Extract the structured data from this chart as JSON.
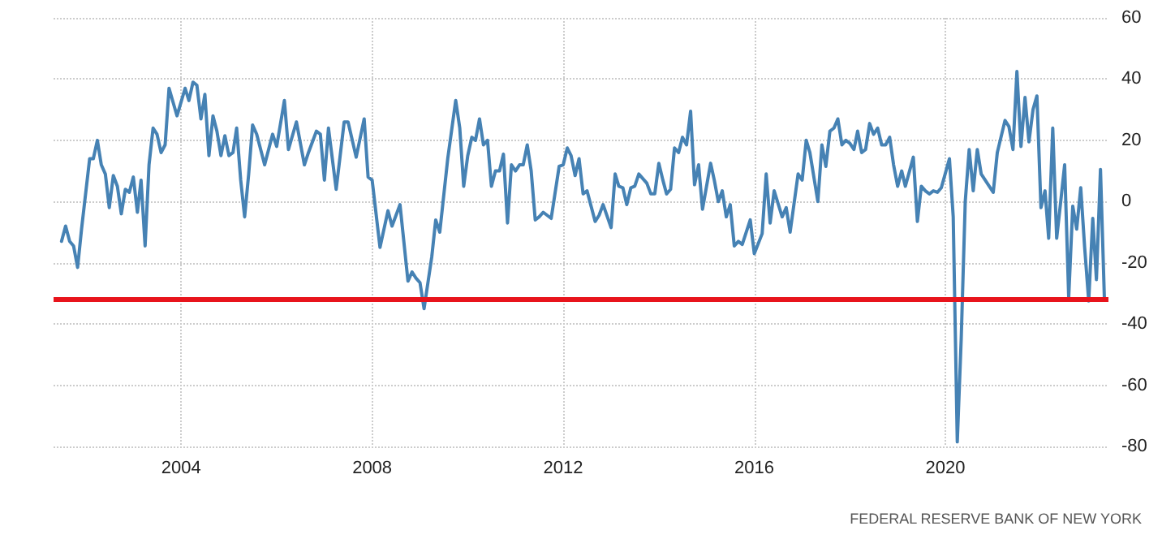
{
  "chart_data": {
    "type": "line",
    "annotations": [
      "FEDERAL RESERVE BANK OF NEW YORK"
    ],
    "x": [
      "2001-07",
      "2001-08",
      "2001-09",
      "2001-10",
      "2001-11",
      "2001-12",
      "2002-02",
      "2002-03",
      "2002-04",
      "2002-05",
      "2002-06",
      "2002-07",
      "2002-08",
      "2002-09",
      "2002-10",
      "2002-11",
      "2002-12",
      "2003-01",
      "2003-02",
      "2003-03",
      "2003-04",
      "2003-05",
      "2003-06",
      "2003-07",
      "2003-08",
      "2003-09",
      "2003-10",
      "2003-12",
      "2004-02",
      "2004-03",
      "2004-04",
      "2004-05",
      "2004-06",
      "2004-07",
      "2004-08",
      "2004-09",
      "2004-10",
      "2004-11",
      "2004-12",
      "2005-01",
      "2005-02",
      "2005-03",
      "2005-04",
      "2005-05",
      "2005-06",
      "2005-07",
      "2005-08",
      "2005-10",
      "2005-12",
      "2006-01",
      "2006-03",
      "2006-04",
      "2006-06",
      "2006-08",
      "2006-09",
      "2006-11",
      "2006-12",
      "2007-01",
      "2007-02",
      "2007-04",
      "2007-06",
      "2007-07",
      "2007-09",
      "2007-11",
      "2007-12",
      "2008-01",
      "2008-03",
      "2008-05",
      "2008-06",
      "2008-08",
      "2008-10",
      "2008-11",
      "2008-12",
      "2009-01",
      "2009-02",
      "2009-04",
      "2009-05",
      "2009-06",
      "2009-08",
      "2009-10",
      "2009-11",
      "2009-12",
      "2010-01",
      "2010-02",
      "2010-03",
      "2010-04",
      "2010-05",
      "2010-06",
      "2010-07",
      "2010-08",
      "2010-09",
      "2010-10",
      "2010-11",
      "2010-12",
      "2011-01",
      "2011-02",
      "2011-03",
      "2011-04",
      "2011-05",
      "2011-06",
      "2011-07",
      "2011-08",
      "2011-10",
      "2011-12",
      "2012-01",
      "2012-02",
      "2012-03",
      "2012-04",
      "2012-05",
      "2012-06",
      "2012-07",
      "2012-09",
      "2012-10",
      "2012-11",
      "2013-01",
      "2013-02",
      "2013-03",
      "2013-04",
      "2013-05",
      "2013-06",
      "2013-07",
      "2013-08",
      "2013-10",
      "2013-11",
      "2013-12",
      "2014-01",
      "2014-02",
      "2014-03",
      "2014-04",
      "2014-05",
      "2014-06",
      "2014-07",
      "2014-08",
      "2014-09",
      "2014-10",
      "2014-11",
      "2014-12",
      "2015-02",
      "2015-03",
      "2015-04",
      "2015-05",
      "2015-06",
      "2015-07",
      "2015-08",
      "2015-09",
      "2015-10",
      "2015-12",
      "2016-01",
      "2016-03",
      "2016-04",
      "2016-05",
      "2016-06",
      "2016-08",
      "2016-09",
      "2016-10",
      "2016-12",
      "2017-01",
      "2017-02",
      "2017-03",
      "2017-05",
      "2017-06",
      "2017-07",
      "2017-08",
      "2017-09",
      "2017-10",
      "2017-11",
      "2017-12",
      "2018-01",
      "2018-02",
      "2018-03",
      "2018-04",
      "2018-05",
      "2018-06",
      "2018-07",
      "2018-08",
      "2018-09",
      "2018-10",
      "2018-11",
      "2018-12",
      "2019-01",
      "2019-02",
      "2019-03",
      "2019-05",
      "2019-06",
      "2019-07",
      "2019-08",
      "2019-09",
      "2019-10",
      "2019-11",
      "2019-12",
      "2020-02",
      "2020-03",
      "2020-04",
      "2020-05",
      "2020-06",
      "2020-07",
      "2020-08",
      "2020-09",
      "2020-10",
      "2020-12",
      "2021-01",
      "2021-02",
      "2021-04",
      "2021-05",
      "2021-06",
      "2021-07",
      "2021-08",
      "2021-09",
      "2021-10",
      "2021-11",
      "2021-12",
      "2022-01",
      "2022-02",
      "2022-03",
      "2022-04",
      "2022-05",
      "2022-06",
      "2022-07",
      "2022-08",
      "2022-09",
      "2022-10",
      "2022-11",
      "2022-12",
      "2023-01",
      "2023-02",
      "2023-03",
      "2023-04",
      "2023-05"
    ],
    "series": [
      {
        "color": "#4682b4",
        "values": [
          -13,
          -8,
          -13,
          -14.5,
          -21.5,
          -9,
          14,
          14,
          20,
          12,
          9,
          -2,
          8.5,
          5,
          -4,
          4,
          3,
          8,
          -3.5,
          7,
          -14.5,
          12,
          24,
          22,
          16,
          18.5,
          37,
          28,
          37,
          33,
          39,
          38,
          27,
          35,
          15,
          28,
          23,
          15,
          21.5,
          15,
          16,
          24,
          7,
          -5,
          9,
          25,
          22,
          12,
          22,
          18,
          33,
          17,
          26,
          12,
          16,
          23,
          22,
          7,
          24,
          4,
          26,
          26,
          14.5,
          27,
          8,
          7,
          -15,
          -3,
          -8,
          -1,
          -26,
          -23,
          -25,
          -26.5,
          -35,
          -18,
          -6,
          -10,
          14,
          33,
          24,
          5,
          15,
          21,
          20,
          27,
          18.5,
          20,
          5,
          10,
          10,
          15.5,
          -7,
          12,
          10,
          12,
          12,
          18.5,
          10,
          -6,
          -5,
          -3.5,
          -5.5,
          11.5,
          12,
          17.5,
          15,
          8.5,
          14,
          2.5,
          3.5,
          -6.5,
          -4.5,
          -1,
          -8.5,
          9,
          5,
          4.5,
          -1,
          4.5,
          5,
          9,
          6,
          2.5,
          2.5,
          12.5,
          7,
          2.5,
          4,
          17.5,
          16,
          21,
          18.5,
          29.5,
          5.5,
          12,
          -2.5,
          12.5,
          7,
          0,
          3.5,
          -5,
          -1,
          -14.5,
          -13,
          -14,
          -6,
          -17,
          -10.5,
          9,
          -7,
          3.5,
          -5,
          -2,
          -10,
          9,
          7,
          20,
          16,
          0,
          18.5,
          11.5,
          23,
          24,
          27,
          18.5,
          20,
          19,
          17,
          23,
          16,
          17,
          25.5,
          22,
          24,
          18.5,
          18.5,
          21,
          12,
          5,
          10,
          5,
          14.5,
          -6.5,
          5,
          3.5,
          2.5,
          3.5,
          3,
          4.5,
          14,
          -5,
          -78.5,
          -45,
          0,
          17,
          3.5,
          17,
          9,
          5,
          3,
          16,
          26.5,
          24.5,
          17,
          42.5,
          18,
          34,
          19.5,
          30,
          34.5,
          -2,
          3.5,
          -12,
          24,
          -12,
          0,
          12,
          -31.3,
          -1.5,
          -9,
          4.5,
          -15,
          -32.5,
          -5.5,
          -25.5,
          10.5,
          -31.8
        ]
      }
    ],
    "xlim": [
      "2001-05",
      "2023-06"
    ],
    "xticks": [
      "2004",
      "2008",
      "2012",
      "2016",
      "2020"
    ],
    "ylim": [
      -80,
      60
    ],
    "yticks": [
      -80,
      -60,
      -40,
      -20,
      0,
      20,
      40,
      60
    ],
    "ref_lines": [
      {
        "axis": "y",
        "value": -31.8,
        "color": "#e8141c"
      }
    ],
    "grid": true,
    "marker": "none",
    "line_style": "solid"
  }
}
